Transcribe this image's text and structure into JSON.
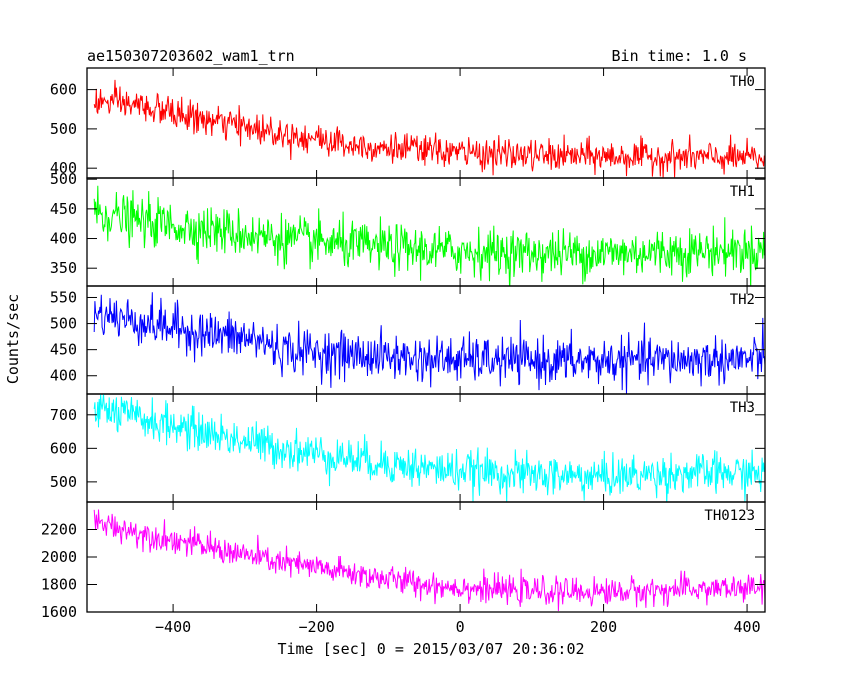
{
  "chart_data": {
    "type": "line",
    "title": "ae150307203602_wam1_trn",
    "bin_time": "Bin time: 1.0 s",
    "xlabel": "Time [sec] 0 = 2015/03/07 20:36:02",
    "ylabel": "Counts/sec",
    "xlim": [
      -520,
      425
    ],
    "x_data_range": [
      -510,
      425
    ],
    "x_ticks": [
      -400,
      -200,
      0,
      200,
      400
    ],
    "x_tick_labels": [
      "−400",
      "−200",
      "0",
      "200",
      "400"
    ],
    "grid": false,
    "legend": "none",
    "panels": [
      {
        "name": "TH0",
        "color": "#ff0000",
        "ylim": [
          375,
          655
        ],
        "y_ticks": [
          400,
          500,
          600
        ],
        "y_tick_labels": [
          "400",
          "500",
          "600"
        ],
        "noise_sd": 20,
        "trend": [
          [
            -510,
            570
          ],
          [
            -450,
            560
          ],
          [
            -350,
            520
          ],
          [
            -250,
            490
          ],
          [
            -150,
            460
          ],
          [
            -50,
            445
          ],
          [
            0,
            440
          ],
          [
            100,
            432
          ],
          [
            200,
            430
          ],
          [
            300,
            428
          ],
          [
            425,
            425
          ]
        ]
      },
      {
        "name": "TH1",
        "color": "#00ff00",
        "ylim": [
          320,
          502
        ],
        "y_ticks": [
          350,
          400,
          450,
          500
        ],
        "y_tick_labels": [
          "350",
          "400",
          "450",
          "500"
        ],
        "noise_sd": 20,
        "trend": [
          [
            -510,
            445
          ],
          [
            -450,
            430
          ],
          [
            -350,
            415
          ],
          [
            -250,
            400
          ],
          [
            -150,
            388
          ],
          [
            -50,
            380
          ],
          [
            100,
            375
          ],
          [
            200,
            375
          ],
          [
            300,
            378
          ],
          [
            425,
            380
          ]
        ]
      },
      {
        "name": "TH2",
        "color": "#0000ff",
        "ylim": [
          365,
          572
        ],
        "y_ticks": [
          400,
          450,
          500,
          550
        ],
        "y_tick_labels": [
          "400",
          "450",
          "500",
          "550"
        ],
        "noise_sd": 22,
        "trend": [
          [
            -510,
            520
          ],
          [
            -450,
            505
          ],
          [
            -350,
            480
          ],
          [
            -280,
            468
          ],
          [
            -250,
            450
          ],
          [
            -150,
            440
          ],
          [
            -50,
            432
          ],
          [
            100,
            428
          ],
          [
            200,
            428
          ],
          [
            300,
            430
          ],
          [
            425,
            432
          ]
        ]
      },
      {
        "name": "TH3",
        "color": "#00ffff",
        "ylim": [
          440,
          762
        ],
        "y_ticks": [
          500,
          600,
          700
        ],
        "y_tick_labels": [
          "500",
          "600",
          "700"
        ],
        "noise_sd": 30,
        "trend": [
          [
            -510,
            720
          ],
          [
            -450,
            690
          ],
          [
            -350,
            645
          ],
          [
            -250,
            600
          ],
          [
            -150,
            570
          ],
          [
            -50,
            540
          ],
          [
            100,
            520
          ],
          [
            200,
            515
          ],
          [
            300,
            525
          ],
          [
            425,
            525
          ]
        ]
      },
      {
        "name": "TH0123",
        "color": "#ff00ff",
        "ylim": [
          1600,
          2400
        ],
        "y_ticks": [
          1600,
          1800,
          2000,
          2200
        ],
        "y_tick_labels": [
          "1600",
          "1800",
          "2000",
          "2200"
        ],
        "noise_sd": 50,
        "trend": [
          [
            -510,
            2260
          ],
          [
            -450,
            2180
          ],
          [
            -350,
            2070
          ],
          [
            -250,
            1960
          ],
          [
            -150,
            1880
          ],
          [
            -50,
            1800
          ],
          [
            50,
            1760
          ],
          [
            150,
            1745
          ],
          [
            250,
            1750
          ],
          [
            350,
            1770
          ],
          [
            425,
            1770
          ]
        ]
      }
    ]
  }
}
